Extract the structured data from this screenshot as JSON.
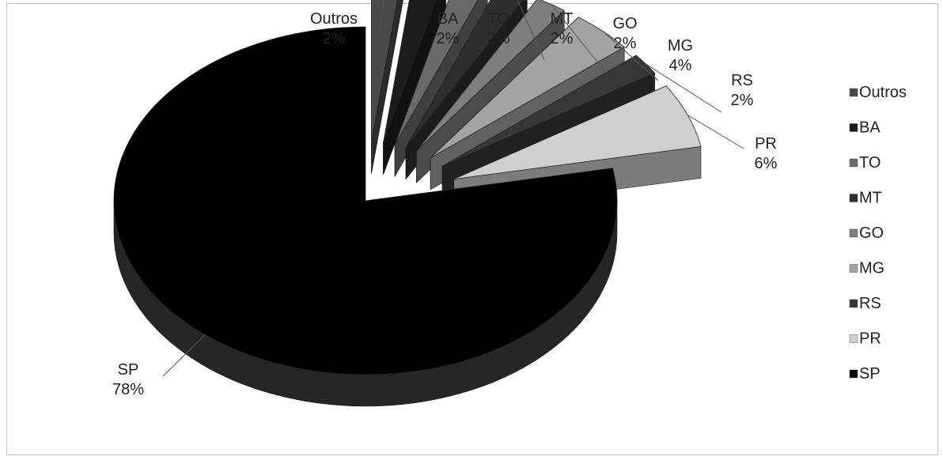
{
  "chart_data": {
    "type": "pie",
    "title": "",
    "legend_position": "right",
    "label_format": "name-and-percent",
    "slices": [
      {
        "name": "Outros",
        "value": 2,
        "label": "2%",
        "color": "#4a4a4a",
        "exploded": true
      },
      {
        "name": "BA",
        "value": 2,
        "label": "2%",
        "color": "#1c1c1c",
        "exploded": true
      },
      {
        "name": "TO",
        "value": 2,
        "label": "2%",
        "color": "#6a6a6a",
        "exploded": true
      },
      {
        "name": "MT",
        "value": 2,
        "label": "2%",
        "color": "#2e2e2e",
        "exploded": true
      },
      {
        "name": "GO",
        "value": 2,
        "label": "2%",
        "color": "#7e7e7e",
        "exploded": true
      },
      {
        "name": "MG",
        "value": 4,
        "label": "4%",
        "color": "#a3a3a3",
        "exploded": true
      },
      {
        "name": "RS",
        "value": 2,
        "label": "2%",
        "color": "#383838",
        "exploded": true
      },
      {
        "name": "PR",
        "value": 6,
        "label": "6%",
        "color": "#cfcfcf",
        "exploded": true
      },
      {
        "name": "SP",
        "value": 78,
        "label": "78%",
        "color": "#000000",
        "exploded": false
      }
    ]
  }
}
